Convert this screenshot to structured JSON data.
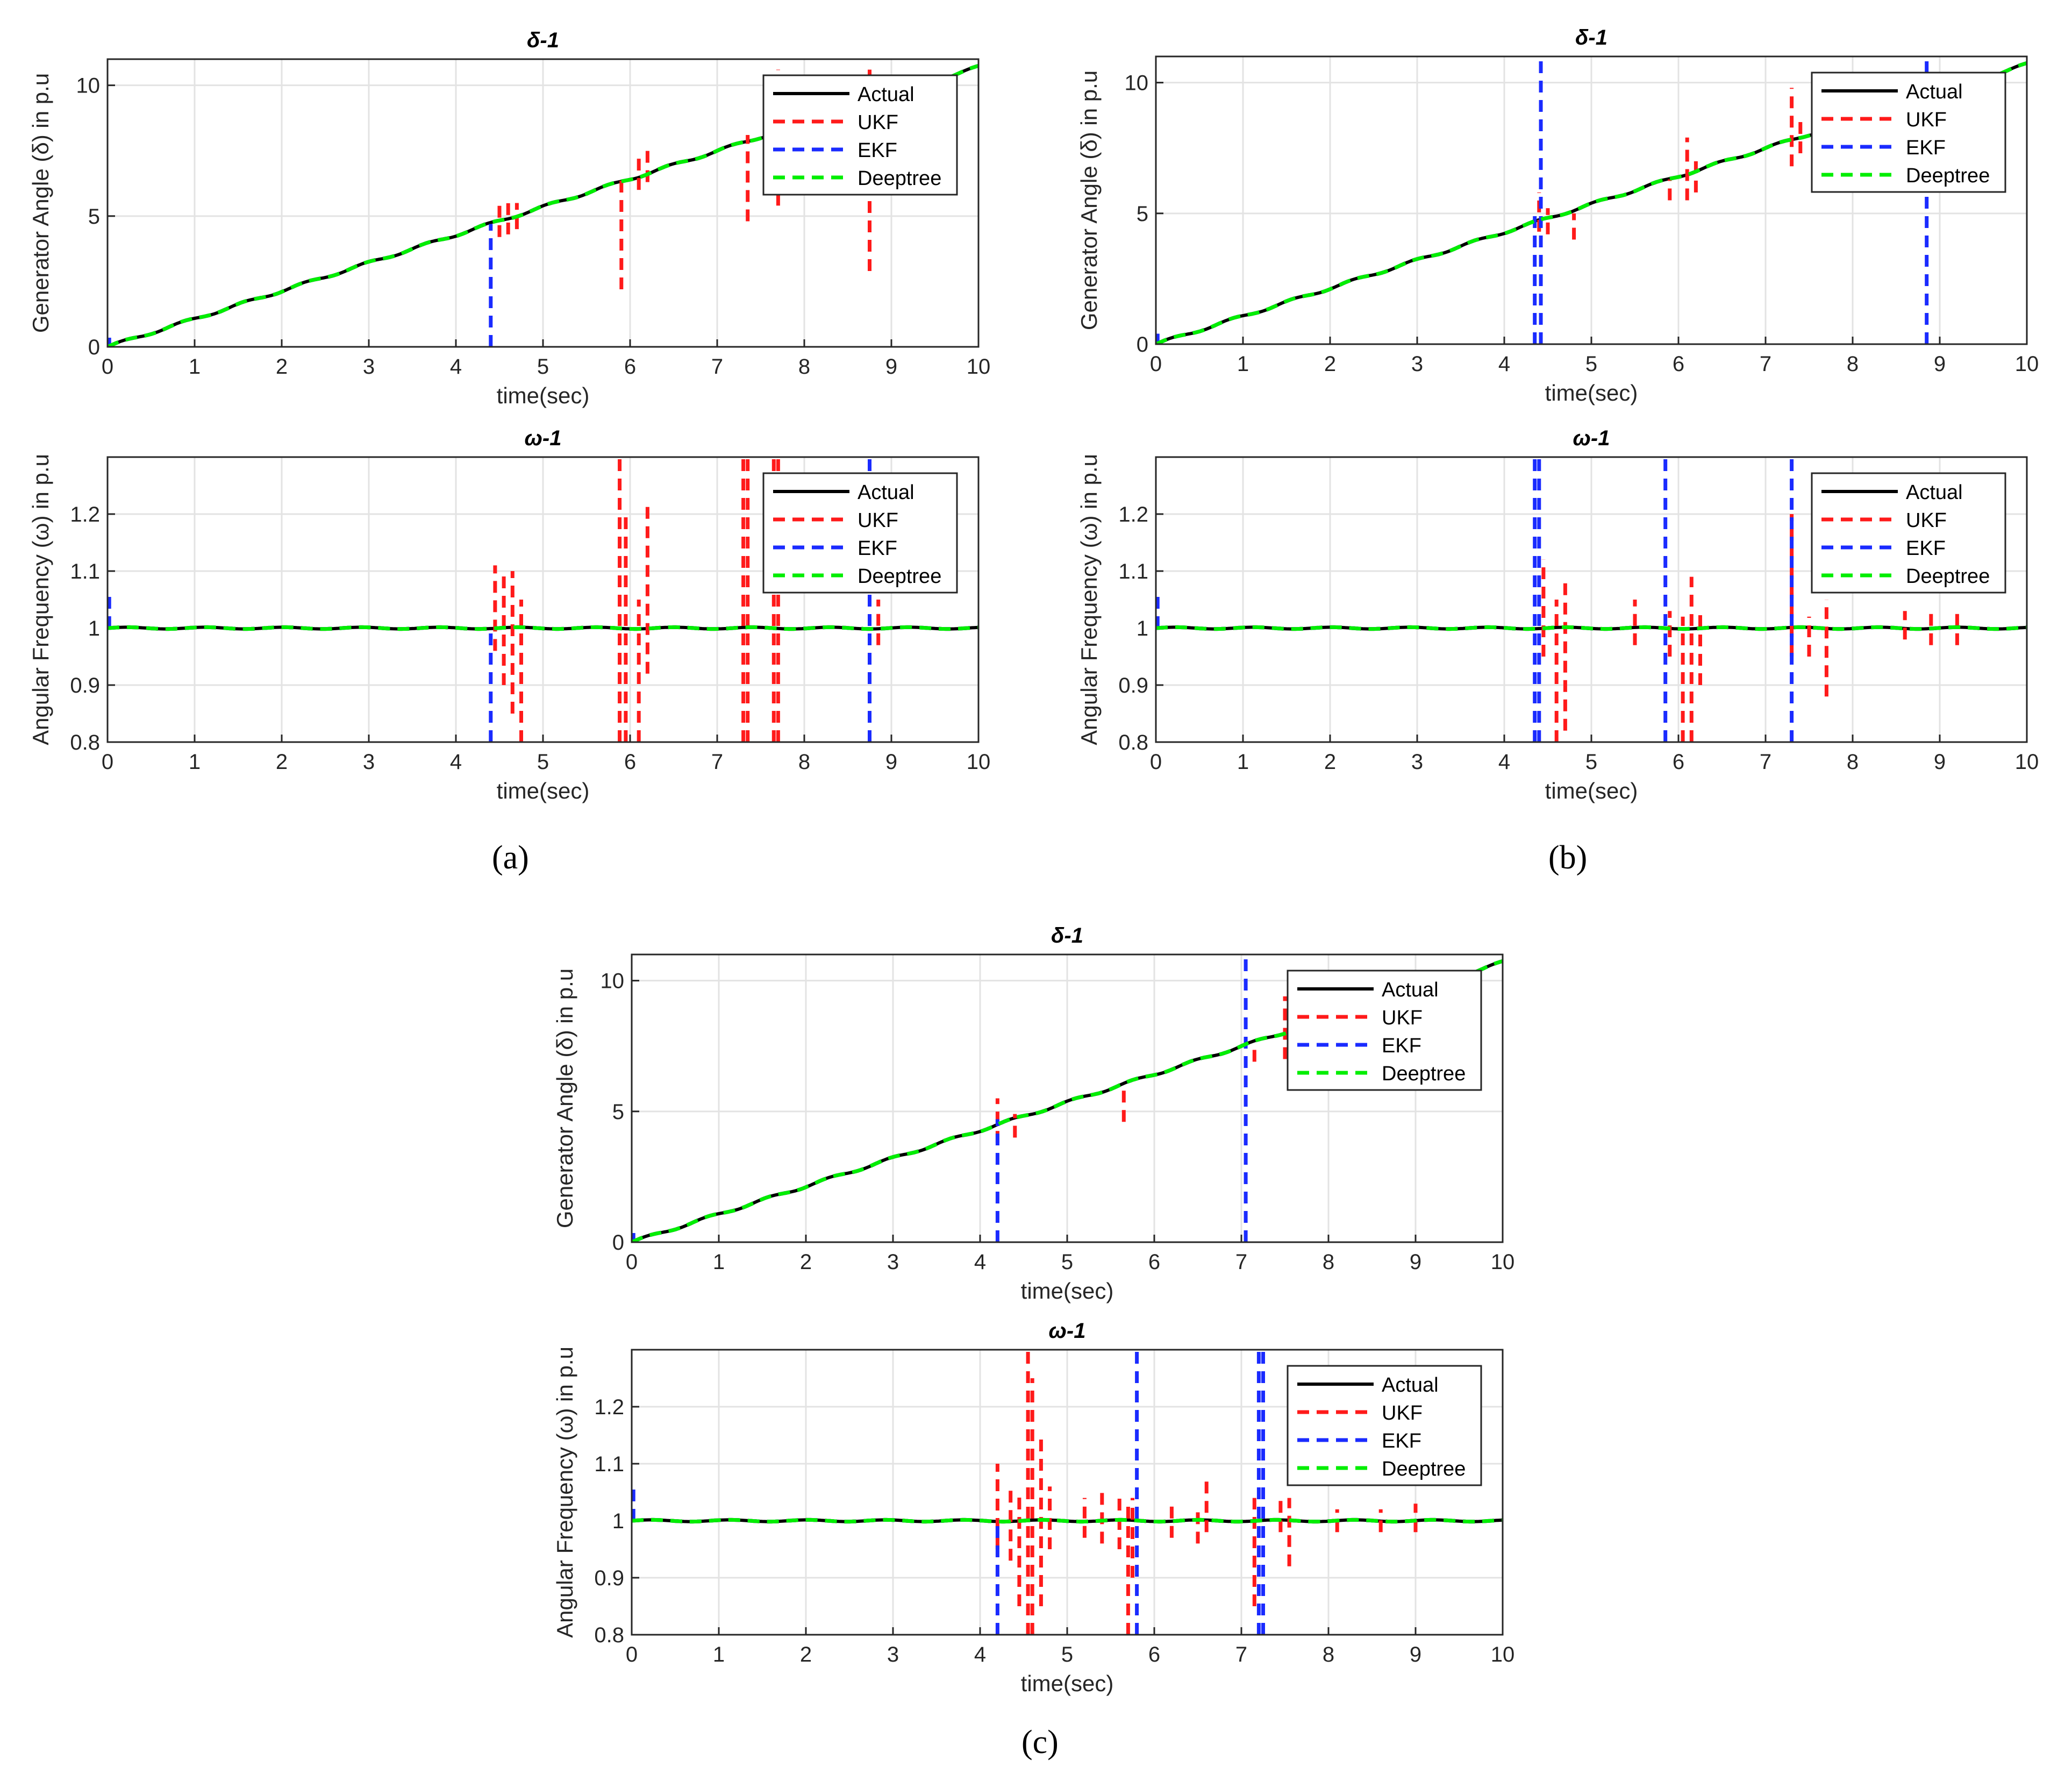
{
  "captions": [
    "(a)",
    "(b)",
    "(c)"
  ],
  "colors": {
    "Actual": "#000000",
    "UKF": "#ff1a1a",
    "EKF": "#1a2bff",
    "Deeptree": "#00ee00",
    "grid": "#e3e3e3",
    "axis": "#262626"
  },
  "chart_data": [
    {
      "panel": "a",
      "type": "line",
      "title": "δ-1",
      "xlabel": "time(sec)",
      "ylabel": "Generator Angle (δ) in p.u",
      "xlim": [
        0,
        10
      ],
      "ylim": [
        0,
        11
      ],
      "xticks": [
        "0",
        "1",
        "2",
        "3",
        "4",
        "5",
        "6",
        "7",
        "8",
        "9",
        "10"
      ],
      "yticks": [
        "0",
        "5",
        "10"
      ],
      "legend": [
        "Actual",
        "UKF",
        "EKF",
        "Deeptree"
      ],
      "legend_position": "top-right",
      "series": [
        {
          "name": "Actual",
          "kind": "delta"
        },
        {
          "name": "UKF",
          "kind": "delta",
          "spikes": [
            [
              4.5,
              4.2,
              5.5
            ],
            [
              4.6,
              4.3,
              5.6
            ],
            [
              4.7,
              4.5,
              5.5
            ],
            [
              5.9,
              2.2,
              6.4
            ],
            [
              6.1,
              6.0,
              7.4
            ],
            [
              6.2,
              6.3,
              7.6
            ],
            [
              7.35,
              4.8,
              8.1
            ],
            [
              7.7,
              5.4,
              10.6
            ],
            [
              8.75,
              2.9,
              10.6
            ]
          ]
        },
        {
          "name": "EKF",
          "kind": "delta",
          "spikes": [
            [
              0.02,
              0.1,
              0.35
            ],
            [
              4.4,
              0,
              4.7
            ]
          ]
        },
        {
          "name": "Deeptree",
          "kind": "delta"
        }
      ]
    },
    {
      "panel": "a",
      "type": "line",
      "title": "ω-1",
      "xlabel": "time(sec)",
      "ylabel": "Angular Frequency (ω) in p.u",
      "xlim": [
        0,
        10
      ],
      "ylim": [
        0.8,
        1.3
      ],
      "xticks": [
        "0",
        "1",
        "2",
        "3",
        "4",
        "5",
        "6",
        "7",
        "8",
        "9",
        "10"
      ],
      "yticks": [
        "0.8",
        "0.9",
        "1",
        "1.1",
        "1.2"
      ],
      "legend": [
        "Actual",
        "UKF",
        "EKF",
        "Deeptree"
      ],
      "legend_position": "top-right",
      "series": [
        {
          "name": "Actual",
          "kind": "omega"
        },
        {
          "name": "UKF",
          "kind": "omega",
          "spikes": [
            [
              4.45,
              0.96,
              1.11
            ],
            [
              4.55,
              0.9,
              1.1
            ],
            [
              4.65,
              0.85,
              1.1
            ],
            [
              4.75,
              0.8,
              1.05
            ],
            [
              5.88,
              0.8,
              1.3
            ],
            [
              5.95,
              0.8,
              1.2
            ],
            [
              6.1,
              0.8,
              1.05
            ],
            [
              6.2,
              0.92,
              1.22
            ],
            [
              7.3,
              0.8,
              1.3
            ],
            [
              7.35,
              0.8,
              1.3
            ],
            [
              7.65,
              0.8,
              1.3
            ],
            [
              7.7,
              0.8,
              1.3
            ],
            [
              8.85,
              0.97,
              1.05
            ]
          ]
        },
        {
          "name": "EKF",
          "kind": "omega",
          "spikes": [
            [
              0.02,
              1.0,
              1.06
            ],
            [
              4.4,
              0.8,
              1.0
            ],
            [
              8.75,
              0.8,
              1.3
            ]
          ]
        },
        {
          "name": "Deeptree",
          "kind": "omega"
        }
      ]
    },
    {
      "panel": "b",
      "type": "line",
      "title": "δ-1",
      "xlabel": "time(sec)",
      "ylabel": "Generator Angle (δ) in p.u",
      "xlim": [
        0,
        10
      ],
      "ylim": [
        0,
        11
      ],
      "xticks": [
        "0",
        "1",
        "2",
        "3",
        "4",
        "5",
        "6",
        "7",
        "8",
        "9",
        "10"
      ],
      "yticks": [
        "0",
        "5",
        "10"
      ],
      "legend": [
        "Actual",
        "UKF",
        "EKF",
        "Deeptree"
      ],
      "legend_position": "top-right",
      "series": [
        {
          "name": "Actual",
          "kind": "delta"
        },
        {
          "name": "UKF",
          "kind": "delta",
          "spikes": [
            [
              4.4,
              4.3,
              5.8
            ],
            [
              4.5,
              4.2,
              5.2
            ],
            [
              4.8,
              4.0,
              5.0
            ],
            [
              5.9,
              5.5,
              6.3
            ],
            [
              6.1,
              5.5,
              7.9
            ],
            [
              6.2,
              5.8,
              7.0
            ],
            [
              7.3,
              6.8,
              9.8
            ],
            [
              7.4,
              7.3,
              8.5
            ]
          ]
        },
        {
          "name": "EKF",
          "kind": "delta",
          "spikes": [
            [
              0.02,
              0.1,
              0.4
            ],
            [
              4.35,
              0,
              5.0
            ],
            [
              4.42,
              0,
              11
            ],
            [
              8.85,
              0,
              11
            ]
          ]
        },
        {
          "name": "Deeptree",
          "kind": "delta"
        }
      ]
    },
    {
      "panel": "b",
      "type": "line",
      "title": "ω-1",
      "xlabel": "time(sec)",
      "ylabel": "Angular Frequency (ω) in p.u",
      "xlim": [
        0,
        10
      ],
      "ylim": [
        0.8,
        1.3
      ],
      "xticks": [
        "0",
        "1",
        "2",
        "3",
        "4",
        "5",
        "6",
        "7",
        "8",
        "9",
        "10"
      ],
      "yticks": [
        "0.8",
        "0.9",
        "1",
        "1.1",
        "1.2"
      ],
      "legend": [
        "Actual",
        "UKF",
        "EKF",
        "Deeptree"
      ],
      "legend_position": "top-right",
      "series": [
        {
          "name": "Actual",
          "kind": "omega"
        },
        {
          "name": "UKF",
          "kind": "omega",
          "spikes": [
            [
              4.45,
              0.95,
              1.12
            ],
            [
              4.6,
              0.8,
              1.05
            ],
            [
              4.7,
              0.82,
              1.09
            ],
            [
              5.5,
              0.97,
              1.05
            ],
            [
              5.9,
              0.95,
              1.03
            ],
            [
              6.05,
              0.8,
              1.02
            ],
            [
              6.15,
              0.8,
              1.09
            ],
            [
              6.25,
              0.9,
              1.03
            ],
            [
              7.3,
              0.95,
              1.2
            ],
            [
              7.5,
              0.95,
              1.02
            ],
            [
              7.7,
              0.88,
              1.05
            ],
            [
              8.6,
              0.98,
              1.03
            ],
            [
              8.9,
              0.97,
              1.03
            ],
            [
              9.2,
              0.97,
              1.03
            ]
          ]
        },
        {
          "name": "EKF",
          "kind": "omega",
          "spikes": [
            [
              0.02,
              1.0,
              1.06
            ],
            [
              4.35,
              0.8,
              1.3
            ],
            [
              4.4,
              0.8,
              1.3
            ],
            [
              5.85,
              0.8,
              1.3
            ],
            [
              7.3,
              0.8,
              1.3
            ]
          ]
        },
        {
          "name": "Deeptree",
          "kind": "omega"
        }
      ]
    },
    {
      "panel": "c",
      "type": "line",
      "title": "δ-1",
      "xlabel": "time(sec)",
      "ylabel": "Generator Angle (δ) in p.u",
      "xlim": [
        0,
        10
      ],
      "ylim": [
        0,
        11
      ],
      "xticks": [
        "0",
        "1",
        "2",
        "3",
        "4",
        "5",
        "6",
        "7",
        "8",
        "9",
        "10"
      ],
      "yticks": [
        "0",
        "5",
        "10"
      ],
      "legend": [
        "Actual",
        "UKF",
        "EKF",
        "Deeptree"
      ],
      "legend_position": "top-right",
      "series": [
        {
          "name": "Actual",
          "kind": "delta"
        },
        {
          "name": "UKF",
          "kind": "delta",
          "spikes": [
            [
              4.2,
              3.8,
              5.5
            ],
            [
              4.4,
              4.0,
              4.9
            ],
            [
              5.65,
              4.6,
              5.8
            ],
            [
              7.15,
              6.9,
              7.6
            ],
            [
              7.5,
              7.0,
              9.4
            ]
          ]
        },
        {
          "name": "EKF",
          "kind": "delta",
          "spikes": [
            [
              0.02,
              0.1,
              0.35
            ],
            [
              4.2,
              0,
              4.7
            ],
            [
              7.05,
              0,
              11
            ]
          ]
        },
        {
          "name": "Deeptree",
          "kind": "delta"
        }
      ]
    },
    {
      "panel": "c",
      "type": "line",
      "title": "ω-1",
      "xlabel": "time(sec)",
      "ylabel": "Angular Frequency (ω) in p.u",
      "xlim": [
        0,
        10
      ],
      "ylim": [
        0.8,
        1.3
      ],
      "xticks": [
        "0",
        "1",
        "2",
        "3",
        "4",
        "5",
        "6",
        "7",
        "8",
        "9",
        "10"
      ],
      "yticks": [
        "0.8",
        "0.9",
        "1",
        "1.1",
        "1.2"
      ],
      "legend": [
        "Actual",
        "UKF",
        "EKF",
        "Deeptree"
      ],
      "legend_position": "top-right",
      "series": [
        {
          "name": "Actual",
          "kind": "omega"
        },
        {
          "name": "UKF",
          "kind": "omega",
          "spikes": [
            [
              4.2,
              0.95,
              1.1
            ],
            [
              4.35,
              0.93,
              1.06
            ],
            [
              4.45,
              0.85,
              1.05
            ],
            [
              4.55,
              0.8,
              1.3
            ],
            [
              4.6,
              0.8,
              1.25
            ],
            [
              4.7,
              0.85,
              1.15
            ],
            [
              4.8,
              0.95,
              1.06
            ],
            [
              5.2,
              0.97,
              1.04
            ],
            [
              5.4,
              0.96,
              1.05
            ],
            [
              5.6,
              0.95,
              1.05
            ],
            [
              5.7,
              0.8,
              1.03
            ],
            [
              5.75,
              0.9,
              1.04
            ],
            [
              6.2,
              0.97,
              1.03
            ],
            [
              6.5,
              0.96,
              1.02
            ],
            [
              6.6,
              0.98,
              1.07
            ],
            [
              7.15,
              0.85,
              1.04
            ],
            [
              7.25,
              0.8,
              1.02
            ],
            [
              7.45,
              0.98,
              1.04
            ],
            [
              7.55,
              0.92,
              1.04
            ],
            [
              8.1,
              0.98,
              1.02
            ],
            [
              8.6,
              0.98,
              1.02
            ],
            [
              9.0,
              0.98,
              1.03
            ]
          ]
        },
        {
          "name": "EKF",
          "kind": "omega",
          "spikes": [
            [
              0.02,
              1.0,
              1.06
            ],
            [
              4.2,
              0.8,
              1.0
            ],
            [
              5.8,
              0.8,
              1.3
            ],
            [
              7.2,
              0.8,
              1.3
            ],
            [
              7.25,
              0.8,
              1.3
            ]
          ]
        },
        {
          "name": "Deeptree",
          "kind": "omega"
        }
      ]
    }
  ]
}
